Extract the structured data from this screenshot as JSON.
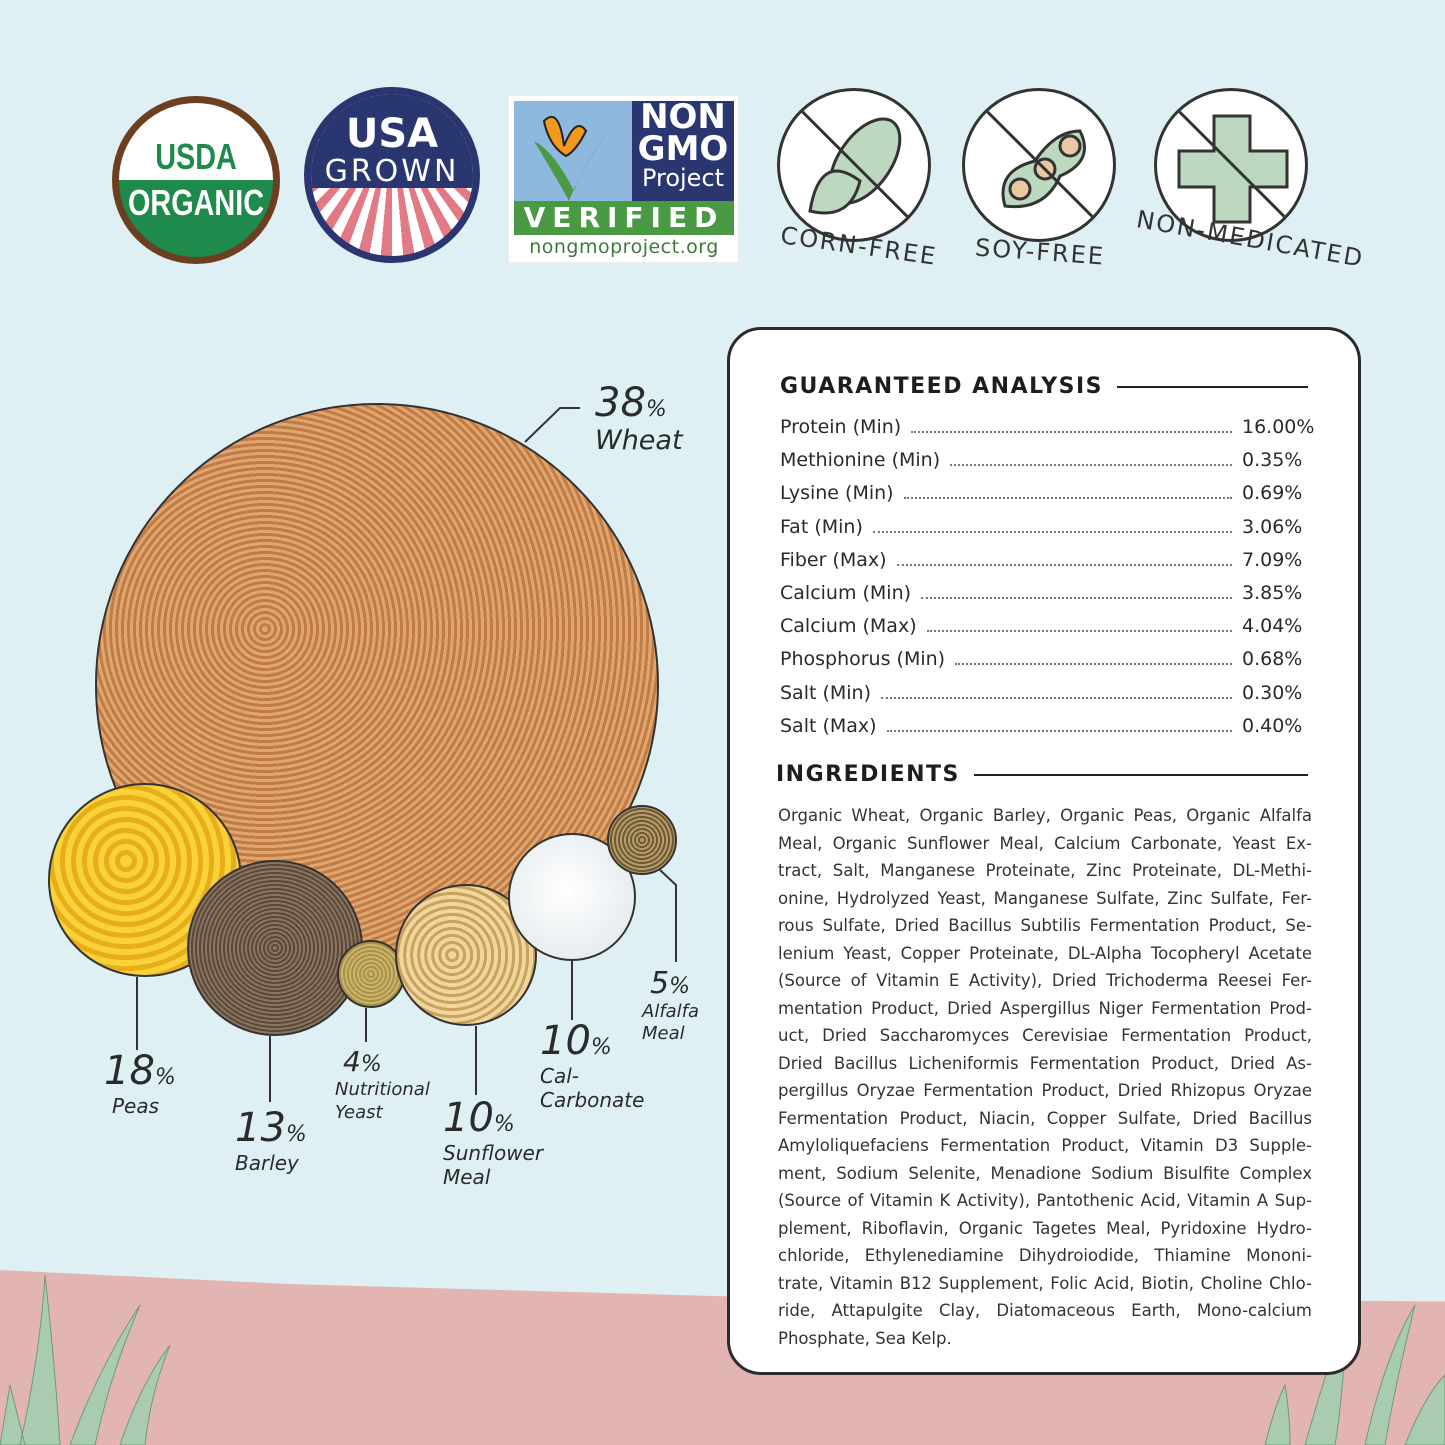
{
  "badges": {
    "usda": {
      "line1": "USDA",
      "line2": "ORGANIC"
    },
    "usa": {
      "line1": "USA",
      "line2": "GROWN"
    },
    "nongmo": {
      "line1": "NON",
      "line2": "GMO",
      "line3": "Project",
      "verified": "VERIFIED",
      "url": "nongmoproject.org"
    },
    "free": [
      {
        "label": "CORN-FREE",
        "icon": "corn-icon"
      },
      {
        "label": "SOY-FREE",
        "icon": "soybean-icon"
      },
      {
        "label": "NON-MEDICATED",
        "icon": "medical-cross-icon"
      }
    ]
  },
  "composition": [
    {
      "pct": "38",
      "name": "Wheat"
    },
    {
      "pct": "18",
      "name": "Peas"
    },
    {
      "pct": "13",
      "name": "Barley"
    },
    {
      "pct": "4",
      "name": "Nutritional Yeast"
    },
    {
      "pct": "10",
      "name": "Sunflower Meal"
    },
    {
      "pct": "10",
      "name": "Cal- Carbonate"
    },
    {
      "pct": "5",
      "name": "Alfalfa Meal"
    }
  ],
  "percent_sign": "%",
  "analysis": {
    "title": "GUARANTEED ANALYSIS",
    "rows": [
      {
        "label": "Protein (Min)",
        "value": "16.00%"
      },
      {
        "label": "Methionine (Min)",
        "value": "0.35%"
      },
      {
        "label": "Lysine (Min)",
        "value": "0.69%"
      },
      {
        "label": "Fat (Min)",
        "value": "3.06%"
      },
      {
        "label": "Fiber (Max)",
        "value": "7.09%"
      },
      {
        "label": "Calcium (Min)",
        "value": "3.85%"
      },
      {
        "label": "Calcium (Max)",
        "value": "4.04%"
      },
      {
        "label": "Phosphorus (Min)",
        "value": "0.68%"
      },
      {
        "label": "Salt (Min)",
        "value": "0.30%"
      },
      {
        "label": "Salt (Max)",
        "value": "0.40%"
      }
    ]
  },
  "ingredients": {
    "title": "INGREDIENTS",
    "lines": [
      "Organic Wheat, Organic Barley, Organic Peas, Organic Alfalfa",
      "Meal, Organic Sunflower Meal, Calcium Carbonate, Yeast Ex-",
      "tract, Salt, Manganese Proteinate, Zinc Proteinate, DL-Methi-",
      "onine, Hydrolyzed Yeast, Manganese Sulfate, Zinc Sulfate, Fer-",
      "rous Sulfate, Dried Bacillus Subtilis Fermentation Product, Se-",
      "lenium Yeast, Copper Proteinate, DL-Alpha Tocopheryl Acetate",
      "(Source of Vitamin E Activity), Dried Trichoderma Reesei Fer-",
      "mentation Product, Dried Aspergillus Niger Fermentation Prod-",
      "uct, Dried Saccharomyces Cerevisiae Fermentation Product,",
      "Dried Bacillus Licheniformis Fermentation Product, Dried As-",
      "pergillus Oryzae Fermentation Product, Dried Rhizopus Oryzae",
      "Fermentation Product, Niacin, Copper Sulfate, Dried Bacillus",
      "Amyloliquefaciens Fermentation Product, Vitamin D3 Supple-",
      "ment, Sodium Selenite, Menadione Sodium Bisulfite Complex",
      "(Source of Vitamin K Activity), Pantothenic Acid, Vitamin A Sup-",
      "plement, Riboflavin, Organic Tagetes Meal, Pyridoxine Hydro-",
      "chloride, Ethylenediamine Dihydroiodide, Thiamine Mononi-",
      "trate, Vitamin B12 Supplement, Folic Acid, Biotin, Choline Chlo-",
      "ride, Attapulgite Clay, Diatomaceous Earth, Mono-calcium",
      "Phosphate, Sea Kelp."
    ]
  },
  "colors": {
    "background": "#dff0f5",
    "ground": "#e2b5b2",
    "usda_green": "#1e8a4c",
    "usa_navy": "#2a3670",
    "nongmo_green": "#4a9a44",
    "icon_fill": "#bcd9bf"
  }
}
